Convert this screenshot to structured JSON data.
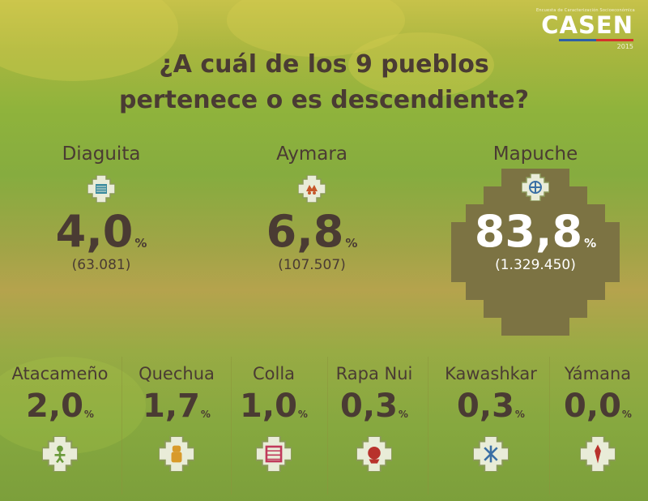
{
  "logo": {
    "tagline": "Encuesta de Caracterización Socioeconómica",
    "name": "CASEN",
    "year": "2015",
    "colors": {
      "blue": "#2d5fa6",
      "red": "#d4322c"
    }
  },
  "title_lines": [
    "¿A cuál de los 9 pueblos",
    "pertenece o es descendiente?"
  ],
  "colors": {
    "text": "#4a3b33",
    "highlight_block": "#7c7343",
    "highlight_text": "#ffffff",
    "icon_border": "#8b9a5a"
  },
  "chart_data": {
    "type": "table",
    "title": "¿A cuál de los 9 pueblos pertenece o es descendiente?",
    "percent_symbol": "%",
    "highlighted": "Mapuche",
    "rows": [
      {
        "name": "Diaguita",
        "percent": "4,0",
        "value": 4.0,
        "count": "(63.081)",
        "icon": "diaguita-symbol-icon"
      },
      {
        "name": "Aymara",
        "percent": "6,8",
        "value": 6.8,
        "count": "(107.507)",
        "icon": "aymara-symbol-icon"
      },
      {
        "name": "Mapuche",
        "percent": "83,8",
        "value": 83.8,
        "count": "(1.329.450)",
        "icon": "mapuche-symbol-icon"
      },
      {
        "name": "Atacameño",
        "percent": "2,0",
        "value": 2.0,
        "icon": "atacameno-symbol-icon"
      },
      {
        "name": "Quechua",
        "percent": "1,7",
        "value": 1.7,
        "icon": "quechua-symbol-icon"
      },
      {
        "name": "Colla",
        "percent": "1,0",
        "value": 1.0,
        "icon": "colla-symbol-icon"
      },
      {
        "name": "Rapa Nui",
        "percent": "0,3",
        "value": 0.3,
        "icon": "rapa-nui-symbol-icon"
      },
      {
        "name": "Kawashkar",
        "percent": "0,3",
        "value": 0.3,
        "icon": "kawashkar-symbol-icon"
      },
      {
        "name": "Yámana",
        "percent": "0,0",
        "value": 0.0,
        "icon": "yamana-symbol-icon"
      }
    ]
  }
}
